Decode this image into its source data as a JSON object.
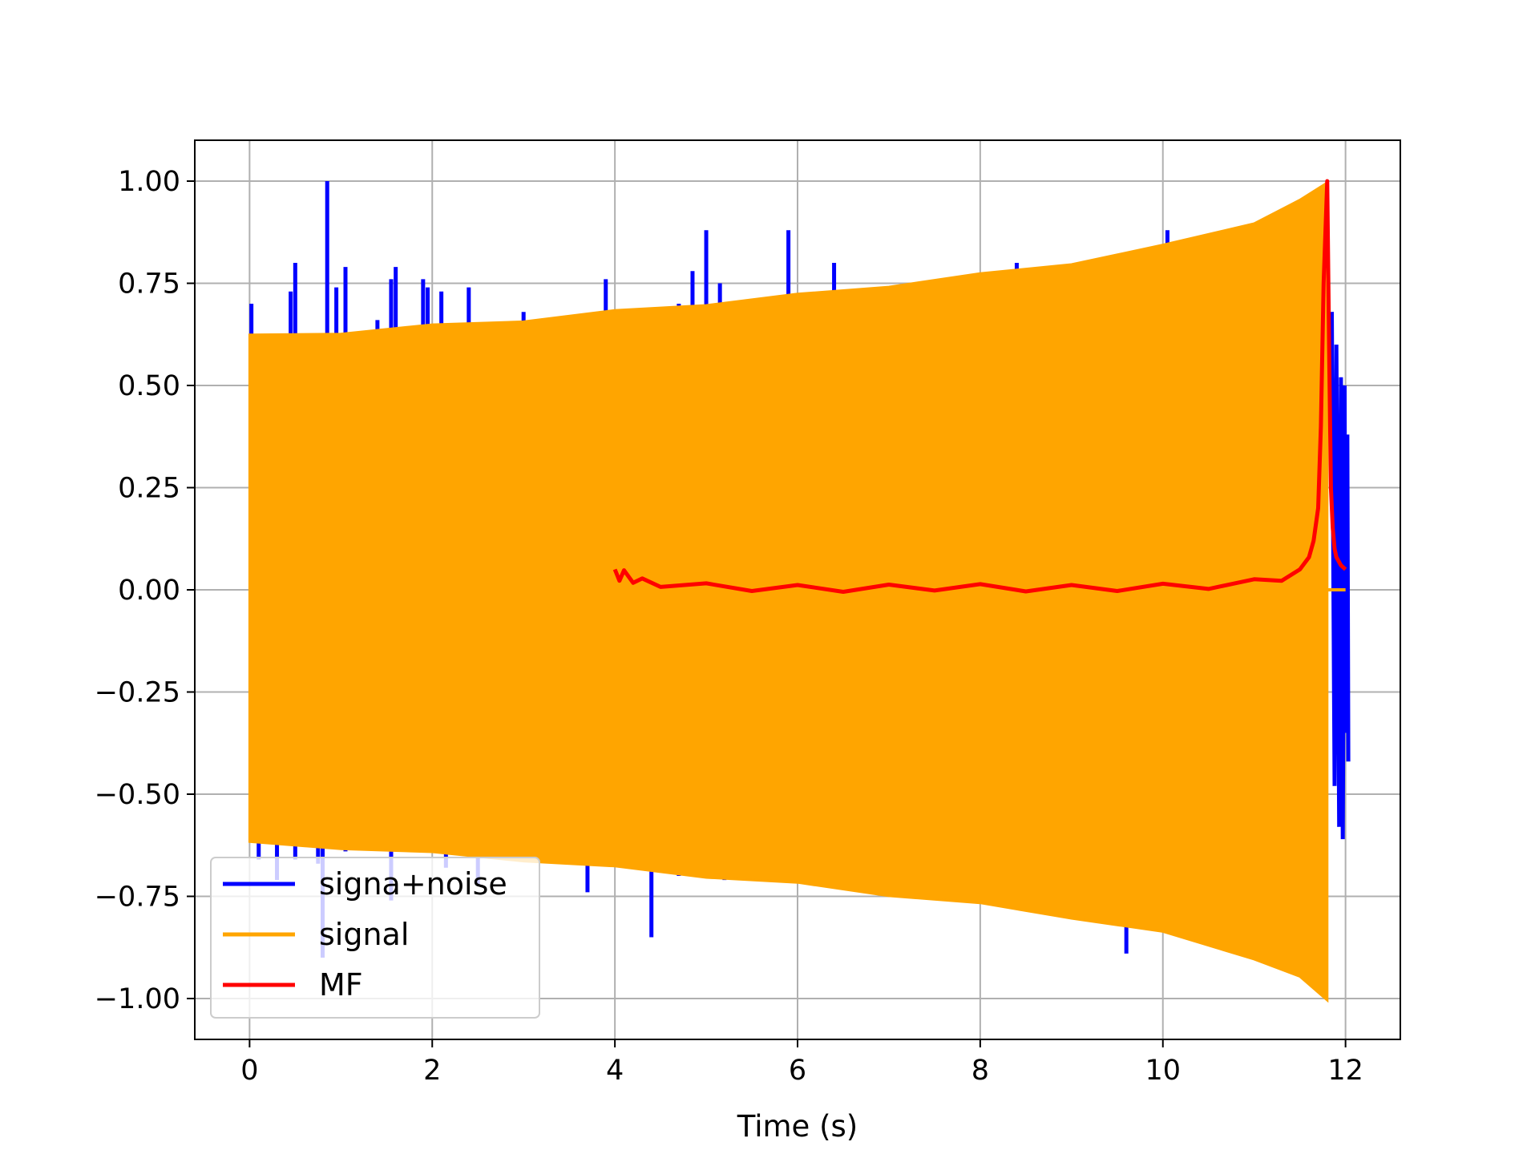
{
  "chart_data": {
    "type": "line",
    "xlabel": "Time (s)",
    "ylabel": "",
    "xlim": [
      -0.6,
      12.6
    ],
    "ylim": [
      -1.1,
      1.1
    ],
    "xticks": [
      0,
      2,
      4,
      6,
      8,
      10,
      12
    ],
    "xtick_labels": [
      "0",
      "2",
      "4",
      "6",
      "8",
      "10",
      "12"
    ],
    "yticks": [
      1.0,
      0.75,
      0.5,
      0.25,
      0.0,
      -0.25,
      -0.5,
      -0.75,
      -1.0
    ],
    "ytick_labels": [
      "1.00",
      "0.75",
      "0.50",
      "0.25",
      "0.00",
      "−0.25",
      "−0.50",
      "−0.75",
      "−1.00"
    ],
    "grid": true,
    "legend_position": "lower-left",
    "series": [
      {
        "name": "signa+noise",
        "color": "#0000ff",
        "spikes": [
          [
            0.02,
            0.7
          ],
          [
            0.45,
            0.73
          ],
          [
            0.5,
            0.8
          ],
          [
            0.85,
            1.0
          ],
          [
            0.95,
            0.74
          ],
          [
            1.05,
            0.79
          ],
          [
            1.4,
            0.66
          ],
          [
            1.55,
            0.76
          ],
          [
            1.6,
            0.79
          ],
          [
            1.9,
            0.76
          ],
          [
            1.95,
            0.74
          ],
          [
            2.1,
            0.73
          ],
          [
            2.4,
            0.74
          ],
          [
            3.0,
            0.68
          ],
          [
            3.9,
            0.76
          ],
          [
            4.7,
            0.7
          ],
          [
            4.85,
            0.78
          ],
          [
            5.0,
            0.88
          ],
          [
            5.15,
            0.75
          ],
          [
            5.9,
            0.88
          ],
          [
            6.4,
            0.8
          ],
          [
            8.4,
            0.8
          ],
          [
            10.05,
            0.88
          ],
          [
            0.1,
            -0.66
          ],
          [
            0.3,
            -0.71
          ],
          [
            0.5,
            -0.66
          ],
          [
            0.75,
            -0.67
          ],
          [
            0.8,
            -0.9
          ],
          [
            1.05,
            -0.64
          ],
          [
            1.55,
            -0.76
          ],
          [
            2.15,
            -0.68
          ],
          [
            2.5,
            -0.72
          ],
          [
            3.7,
            -0.74
          ],
          [
            4.4,
            -0.85
          ],
          [
            4.7,
            -0.7
          ],
          [
            5.2,
            -0.71
          ],
          [
            9.6,
            -0.89
          ]
        ],
        "burst_end": [
          [
            11.85,
            0.68
          ],
          [
            11.88,
            -0.48
          ],
          [
            11.9,
            0.6
          ],
          [
            11.93,
            -0.58
          ],
          [
            11.95,
            0.52
          ],
          [
            11.97,
            -0.61
          ],
          [
            11.99,
            0.5
          ],
          [
            12.0,
            -0.35
          ],
          [
            12.02,
            0.38
          ],
          [
            12.03,
            -0.42
          ]
        ]
      },
      {
        "name": "signal",
        "color": "#ffa500",
        "t_start": 0.0,
        "t_end": 11.8,
        "amplitude_start": 0.62,
        "amplitude_end": 1.0,
        "envelope": [
          [
            0.0,
            0.62
          ],
          [
            1.0,
            0.63
          ],
          [
            2.0,
            0.645
          ],
          [
            3.0,
            0.66
          ],
          [
            4.0,
            0.68
          ],
          [
            5.0,
            0.7
          ],
          [
            6.0,
            0.72
          ],
          [
            7.0,
            0.745
          ],
          [
            8.0,
            0.77
          ],
          [
            9.0,
            0.8
          ],
          [
            10.0,
            0.84
          ],
          [
            11.0,
            0.9
          ],
          [
            11.5,
            0.95
          ],
          [
            11.8,
            1.0
          ]
        ],
        "tail": [
          [
            11.8,
            0.0
          ],
          [
            12.0,
            0.0
          ]
        ]
      },
      {
        "name": "MF",
        "color": "#ff0000",
        "x": [
          4.0,
          4.05,
          4.1,
          4.2,
          4.3,
          4.5,
          5.0,
          5.5,
          6.0,
          6.5,
          7.0,
          7.5,
          8.0,
          8.5,
          9.0,
          9.5,
          10.0,
          10.5,
          11.0,
          11.3,
          11.5,
          11.6,
          11.65,
          11.7,
          11.73,
          11.76,
          11.8,
          11.82,
          11.84,
          11.86,
          11.88,
          11.9,
          11.95,
          12.0
        ],
        "y": [
          0.05,
          0.03,
          0.04,
          0.025,
          0.02,
          0.015,
          0.008,
          0.005,
          0.004,
          0.003,
          0.005,
          0.006,
          0.006,
          0.004,
          0.004,
          0.005,
          0.007,
          0.01,
          0.018,
          0.03,
          0.05,
          0.08,
          0.12,
          0.2,
          0.4,
          0.75,
          1.0,
          0.6,
          0.25,
          0.15,
          0.1,
          0.08,
          0.06,
          0.05
        ]
      }
    ]
  }
}
